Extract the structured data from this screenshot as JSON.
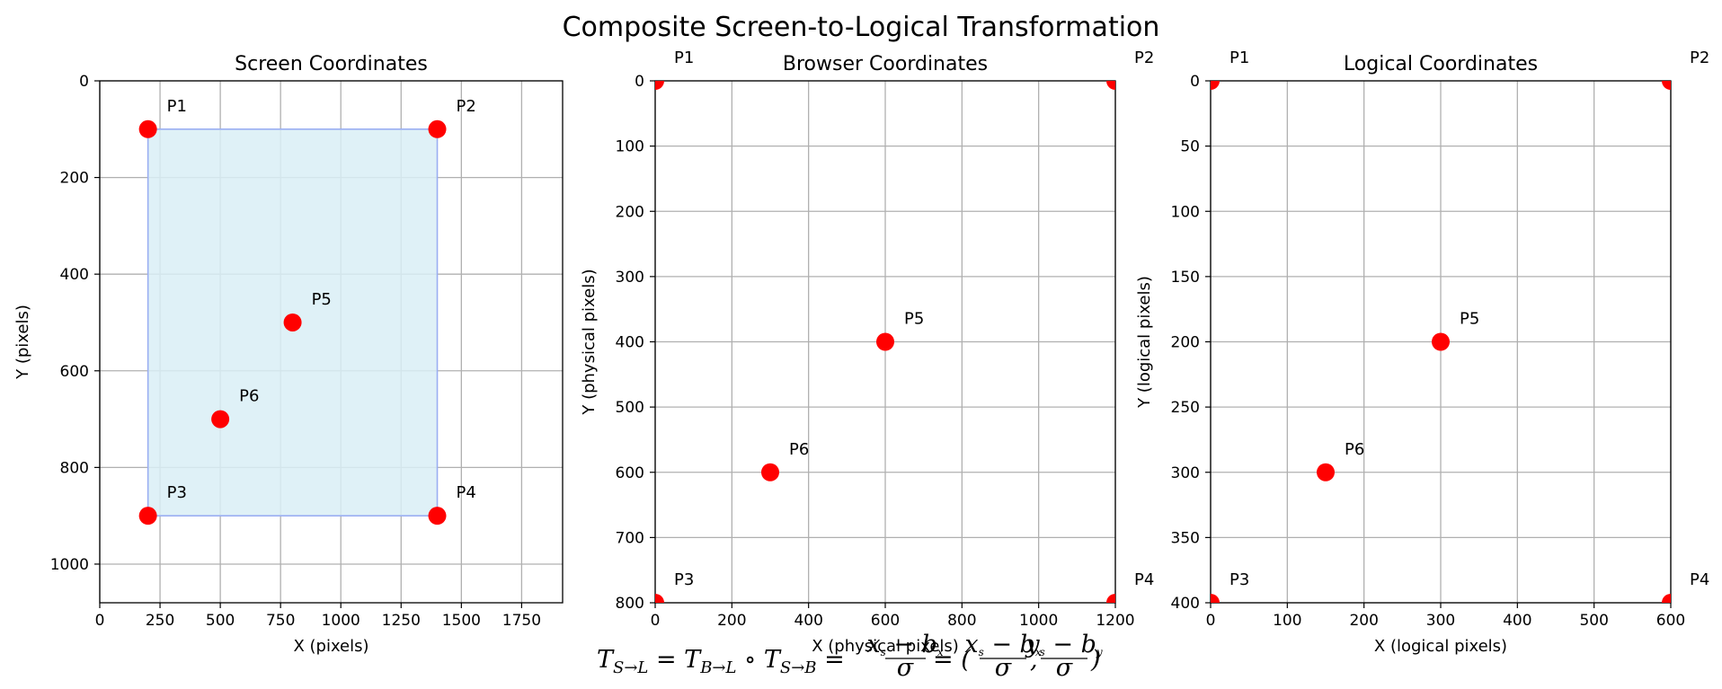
{
  "figure": {
    "title": "Composite Screen-to-Logical Transformation",
    "formula": "T_{S→L} = T_{B→L} ∘ T_{S→B} = (x_s−b_x)/σ = ((x_s−b_x)/σ, (y_s−b_y)/σ)"
  },
  "colors": {
    "point": "#ff0000",
    "rect_fill": "#d9eef6",
    "rect_stroke": "#9aaef2",
    "grid": "#b0b0b0"
  },
  "chart_data": [
    {
      "type": "scatter",
      "title": "Screen Coordinates",
      "xlabel": "X (pixels)",
      "ylabel": "Y (pixels)",
      "xlim": [
        0,
        1920
      ],
      "ylim": [
        1080,
        0
      ],
      "y_inverted": true,
      "grid": true,
      "xticks": [
        0,
        250,
        500,
        750,
        1000,
        1250,
        1500,
        1750
      ],
      "yticks": [
        0,
        200,
        400,
        600,
        800,
        1000
      ],
      "region": {
        "x0": 200,
        "y0": 100,
        "x1": 1400,
        "y1": 900
      },
      "points": [
        {
          "label": "P1",
          "x": 200,
          "y": 100
        },
        {
          "label": "P2",
          "x": 1400,
          "y": 100
        },
        {
          "label": "P3",
          "x": 200,
          "y": 900
        },
        {
          "label": "P4",
          "x": 1400,
          "y": 900
        },
        {
          "label": "P5",
          "x": 800,
          "y": 500
        },
        {
          "label": "P6",
          "x": 500,
          "y": 700
        }
      ]
    },
    {
      "type": "scatter",
      "title": "Browser Coordinates",
      "xlabel": "X (physical pixels)",
      "ylabel": "Y (physical pixels)",
      "xlim": [
        0,
        1200
      ],
      "ylim": [
        800,
        0
      ],
      "y_inverted": true,
      "grid": true,
      "xticks": [
        0,
        200,
        400,
        600,
        800,
        1000,
        1200
      ],
      "yticks": [
        0,
        100,
        200,
        300,
        400,
        500,
        600,
        700,
        800
      ],
      "points": [
        {
          "label": "P1",
          "x": 0,
          "y": 0
        },
        {
          "label": "P2",
          "x": 1200,
          "y": 0
        },
        {
          "label": "P3",
          "x": 0,
          "y": 800
        },
        {
          "label": "P4",
          "x": 1200,
          "y": 800
        },
        {
          "label": "P5",
          "x": 600,
          "y": 400
        },
        {
          "label": "P6",
          "x": 300,
          "y": 600
        }
      ]
    },
    {
      "type": "scatter",
      "title": "Logical Coordinates",
      "xlabel": "X (logical pixels)",
      "ylabel": "Y (logical pixels)",
      "xlim": [
        0,
        600
      ],
      "ylim": [
        400,
        0
      ],
      "y_inverted": true,
      "grid": true,
      "xticks": [
        0,
        100,
        200,
        300,
        400,
        500,
        600
      ],
      "yticks": [
        0,
        50,
        100,
        150,
        200,
        250,
        300,
        350,
        400
      ],
      "points": [
        {
          "label": "P1",
          "x": 0,
          "y": 0
        },
        {
          "label": "P2",
          "x": 600,
          "y": 0
        },
        {
          "label": "P3",
          "x": 0,
          "y": 400
        },
        {
          "label": "P4",
          "x": 600,
          "y": 400
        },
        {
          "label": "P5",
          "x": 300,
          "y": 200
        },
        {
          "label": "P6",
          "x": 150,
          "y": 300
        }
      ]
    }
  ]
}
